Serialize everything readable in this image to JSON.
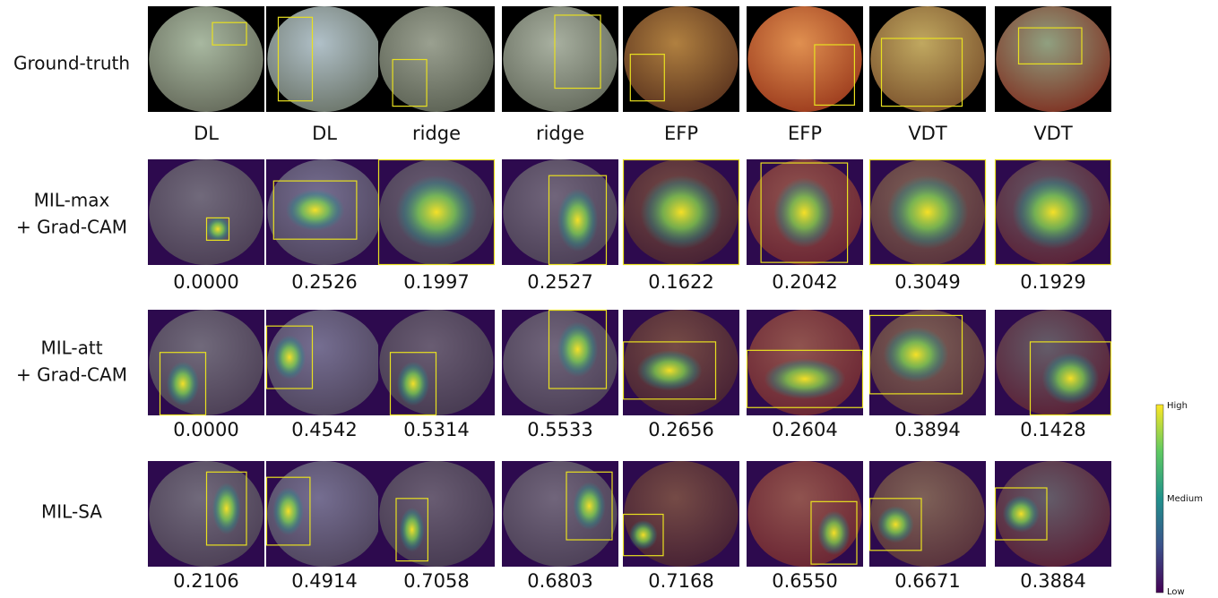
{
  "rows": [
    {
      "label": [
        "Ground-truth"
      ],
      "captions": [
        "DL",
        "DL",
        "ridge",
        "ridge",
        "EFP",
        "EFP",
        "VDT",
        "VDT"
      ]
    },
    {
      "label": [
        "MIL-max",
        "+ Grad-CAM"
      ],
      "captions": [
        "0.0000",
        "0.2526",
        "0.1997",
        "0.2527",
        "0.1622",
        "0.2042",
        "0.3049",
        "0.1929"
      ]
    },
    {
      "label": [
        "MIL-att",
        "+ Grad-CAM"
      ],
      "captions": [
        "0.0000",
        "0.4542",
        "0.5314",
        "0.5533",
        "0.2656",
        "0.2604",
        "0.3894",
        "0.1428"
      ]
    },
    {
      "label": [
        "MIL-SA"
      ],
      "captions": [
        "0.2106",
        "0.4914",
        "0.7058",
        "0.6803",
        "0.7168",
        "0.6550",
        "0.6671",
        "0.3884"
      ]
    }
  ],
  "colorbar": {
    "high": "High",
    "medium": "Medium",
    "low": "Low"
  }
}
